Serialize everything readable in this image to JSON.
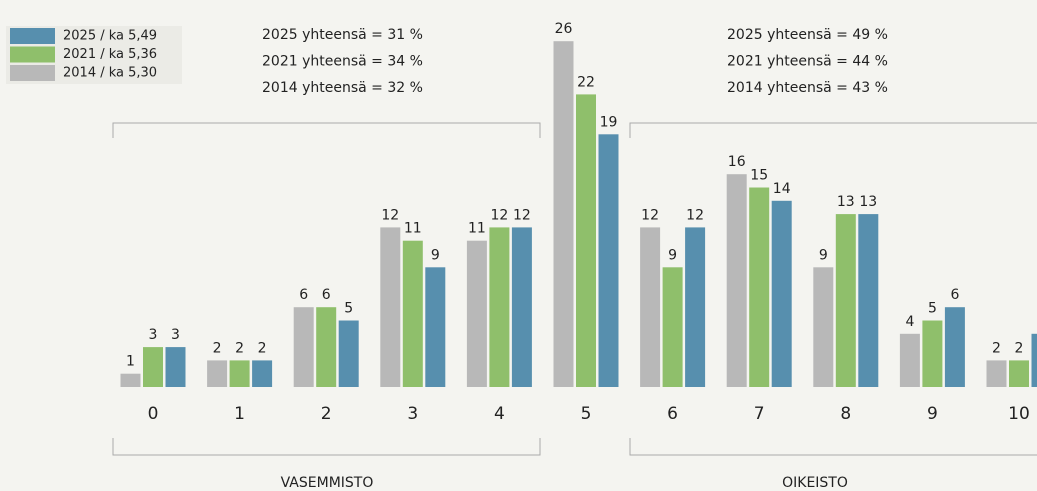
{
  "chart_data": {
    "type": "bar",
    "categories": [
      "0",
      "1",
      "2",
      "3",
      "4",
      "5",
      "6",
      "7",
      "8",
      "9",
      "10"
    ],
    "series": [
      {
        "name": "2025 / ka 5,49",
        "color": "#578fae",
        "values": [
          3,
          2,
          5,
          9,
          12,
          19,
          12,
          14,
          13,
          6,
          4
        ]
      },
      {
        "name": "2021 / ka 5,36",
        "color": "#8fbf6b",
        "values": [
          3,
          2,
          6,
          11,
          12,
          22,
          9,
          15,
          13,
          5,
          2
        ]
      },
      {
        "name": "2014 / ka 5,30",
        "color": "#b8b8b8",
        "values": [
          1,
          2,
          6,
          12,
          11,
          26,
          12,
          16,
          9,
          4,
          2
        ]
      }
    ],
    "annotations": {
      "left": [
        "2025 yhteensä = 31 %",
        "2021 yhteensä = 34 %",
        "2014 yhteensä = 32 %"
      ],
      "right": [
        "2025 yhteensä = 49 %",
        "2021 yhteensä = 44 %",
        "2014 yhteensä = 43 %"
      ],
      "left_label": "VASEMMISTO",
      "right_label": "OIKEISTO"
    }
  }
}
